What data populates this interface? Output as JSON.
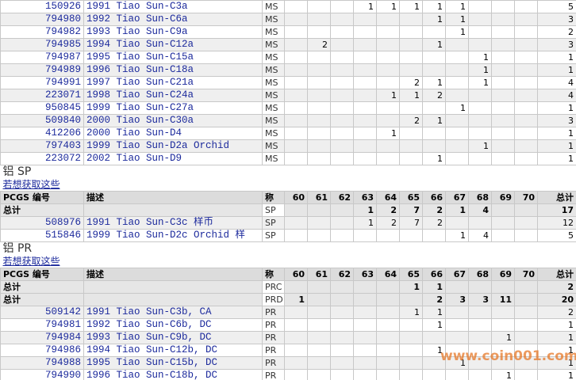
{
  "ms_rows": [
    {
      "id": "150926",
      "description": "1991 Tiao Sun-C3a",
      "designation": "MS",
      "counts": [
        null,
        null,
        null,
        1,
        1,
        1,
        1,
        1,
        null,
        null,
        null
      ],
      "total": 5
    },
    {
      "id": "794980",
      "description": "1992 Tiao Sun-C6a",
      "designation": "MS",
      "counts": [
        null,
        null,
        null,
        null,
        null,
        null,
        1,
        1,
        null,
        null,
        null
      ],
      "total": 3
    },
    {
      "id": "794982",
      "description": "1993 Tiao Sun-C9a",
      "designation": "MS",
      "counts": [
        null,
        null,
        null,
        null,
        null,
        null,
        null,
        1,
        null,
        null,
        null
      ],
      "total": 2
    },
    {
      "id": "794985",
      "description": "1994 Tiao Sun-C12a",
      "designation": "MS",
      "counts": [
        null,
        2,
        null,
        null,
        null,
        null,
        1,
        null,
        null,
        null,
        null
      ],
      "total": 3
    },
    {
      "id": "794987",
      "description": "1995 Tiao Sun-C15a",
      "designation": "MS",
      "counts": [
        null,
        null,
        null,
        null,
        null,
        null,
        null,
        null,
        1,
        null,
        null
      ],
      "total": 1
    },
    {
      "id": "794989",
      "description": "1996 Tiao Sun-C18a",
      "designation": "MS",
      "counts": [
        null,
        null,
        null,
        null,
        null,
        null,
        null,
        null,
        1,
        null,
        null
      ],
      "total": 1
    },
    {
      "id": "794991",
      "description": "1997 Tiao Sun-C21a",
      "designation": "MS",
      "counts": [
        null,
        null,
        null,
        null,
        null,
        2,
        1,
        null,
        1,
        null,
        null
      ],
      "total": 4
    },
    {
      "id": "223071",
      "description": "1998 Tiao Sun-C24a",
      "designation": "MS",
      "counts": [
        null,
        null,
        null,
        null,
        1,
        1,
        2,
        null,
        null,
        null,
        null
      ],
      "total": 4
    },
    {
      "id": "950845",
      "description": "1999 Tiao Sun-C27a",
      "designation": "MS",
      "counts": [
        null,
        null,
        null,
        null,
        null,
        null,
        null,
        1,
        null,
        null,
        null
      ],
      "total": 1
    },
    {
      "id": "509840",
      "description": "2000 Tiao Sun-C30a",
      "designation": "MS",
      "counts": [
        null,
        null,
        null,
        null,
        null,
        2,
        1,
        null,
        null,
        null,
        null
      ],
      "total": 3
    },
    {
      "id": "412206",
      "description": "2000 Tiao Sun-D4",
      "designation": "MS",
      "counts": [
        null,
        null,
        null,
        null,
        1,
        null,
        null,
        null,
        null,
        null,
        null
      ],
      "total": 1
    },
    {
      "id": "797403",
      "description": "1999 Tiao Sun-D2a Orchid",
      "designation": "MS",
      "counts": [
        null,
        null,
        null,
        null,
        null,
        null,
        null,
        null,
        1,
        null,
        null
      ],
      "total": 1
    },
    {
      "id": "223072",
      "description": "2002 Tiao Sun-D9",
      "designation": "MS",
      "counts": [
        null,
        null,
        null,
        null,
        null,
        null,
        1,
        null,
        null,
        null,
        null
      ],
      "total": 1
    }
  ],
  "sections": [
    {
      "heading": "铝 SP",
      "link": "若想获取这些",
      "header": {
        "pcgs_no": "PCGS 编号",
        "description": "描述",
        "designation": "称",
        "grades": [
          60,
          61,
          62,
          63,
          64,
          65,
          66,
          67,
          68,
          69,
          70
        ],
        "total": "总计"
      },
      "total_rows": [
        {
          "label": "总计",
          "designation": "SP",
          "counts": [
            null,
            null,
            null,
            1,
            2,
            7,
            2,
            1,
            4,
            null,
            null
          ],
          "total": 17
        }
      ],
      "rows": [
        {
          "id": "508976",
          "description": "1991 Tiao Sun-C3c 样币",
          "designation": "SP",
          "counts": [
            null,
            null,
            null,
            1,
            2,
            7,
            2,
            null,
            null,
            null,
            null
          ],
          "total": 12
        },
        {
          "id": "515846",
          "description": "1999 Tiao Sun-D2c Orchid 样",
          "designation": "SP",
          "counts": [
            null,
            null,
            null,
            null,
            null,
            null,
            null,
            1,
            4,
            null,
            null
          ],
          "total": 5
        }
      ]
    },
    {
      "heading": "铝 PR",
      "link": "若想获取这些",
      "header": {
        "pcgs_no": "PCGS 编号",
        "description": "描述",
        "designation": "称",
        "grades": [
          60,
          61,
          62,
          63,
          64,
          65,
          66,
          67,
          68,
          69,
          70
        ],
        "total": "总计"
      },
      "total_rows": [
        {
          "label": "总计",
          "designation": "PRC",
          "counts": [
            null,
            null,
            null,
            null,
            null,
            1,
            1,
            null,
            null,
            null,
            null
          ],
          "total": 2
        },
        {
          "label": "总计",
          "designation": "PRD",
          "counts": [
            1,
            null,
            null,
            null,
            null,
            null,
            2,
            3,
            3,
            11,
            null
          ],
          "total": 20
        }
      ],
      "rows": [
        {
          "id": "509142",
          "description": "1991 Tiao Sun-C3b, CA",
          "designation": "PR",
          "counts": [
            null,
            null,
            null,
            null,
            null,
            1,
            1,
            null,
            null,
            null,
            null
          ],
          "total": 2
        },
        {
          "id": "794981",
          "description": "1992 Tiao Sun-C6b, DC",
          "designation": "PR",
          "counts": [
            null,
            null,
            null,
            null,
            null,
            null,
            1,
            null,
            null,
            null,
            null
          ],
          "total": 1
        },
        {
          "id": "794984",
          "description": "1993 Tiao Sun-C9b, DC",
          "designation": "PR",
          "counts": [
            null,
            null,
            null,
            null,
            null,
            null,
            null,
            null,
            null,
            1,
            null
          ],
          "total": 1
        },
        {
          "id": "794986",
          "description": "1994 Tiao Sun-C12b, DC",
          "designation": "PR",
          "counts": [
            null,
            null,
            null,
            null,
            null,
            null,
            1,
            null,
            null,
            null,
            null
          ],
          "total": 1
        },
        {
          "id": "794988",
          "description": "1995 Tiao Sun-C15b, DC",
          "designation": "PR",
          "counts": [
            null,
            null,
            null,
            null,
            null,
            null,
            null,
            1,
            null,
            null,
            null
          ],
          "total": 1
        },
        {
          "id": "794990",
          "description": "1996 Tiao Sun-C18b, DC",
          "designation": "PR",
          "counts": [
            null,
            null,
            null,
            null,
            null,
            null,
            null,
            null,
            null,
            1,
            null
          ],
          "total": 1
        }
      ]
    }
  ],
  "watermark": "www.coin001.com"
}
